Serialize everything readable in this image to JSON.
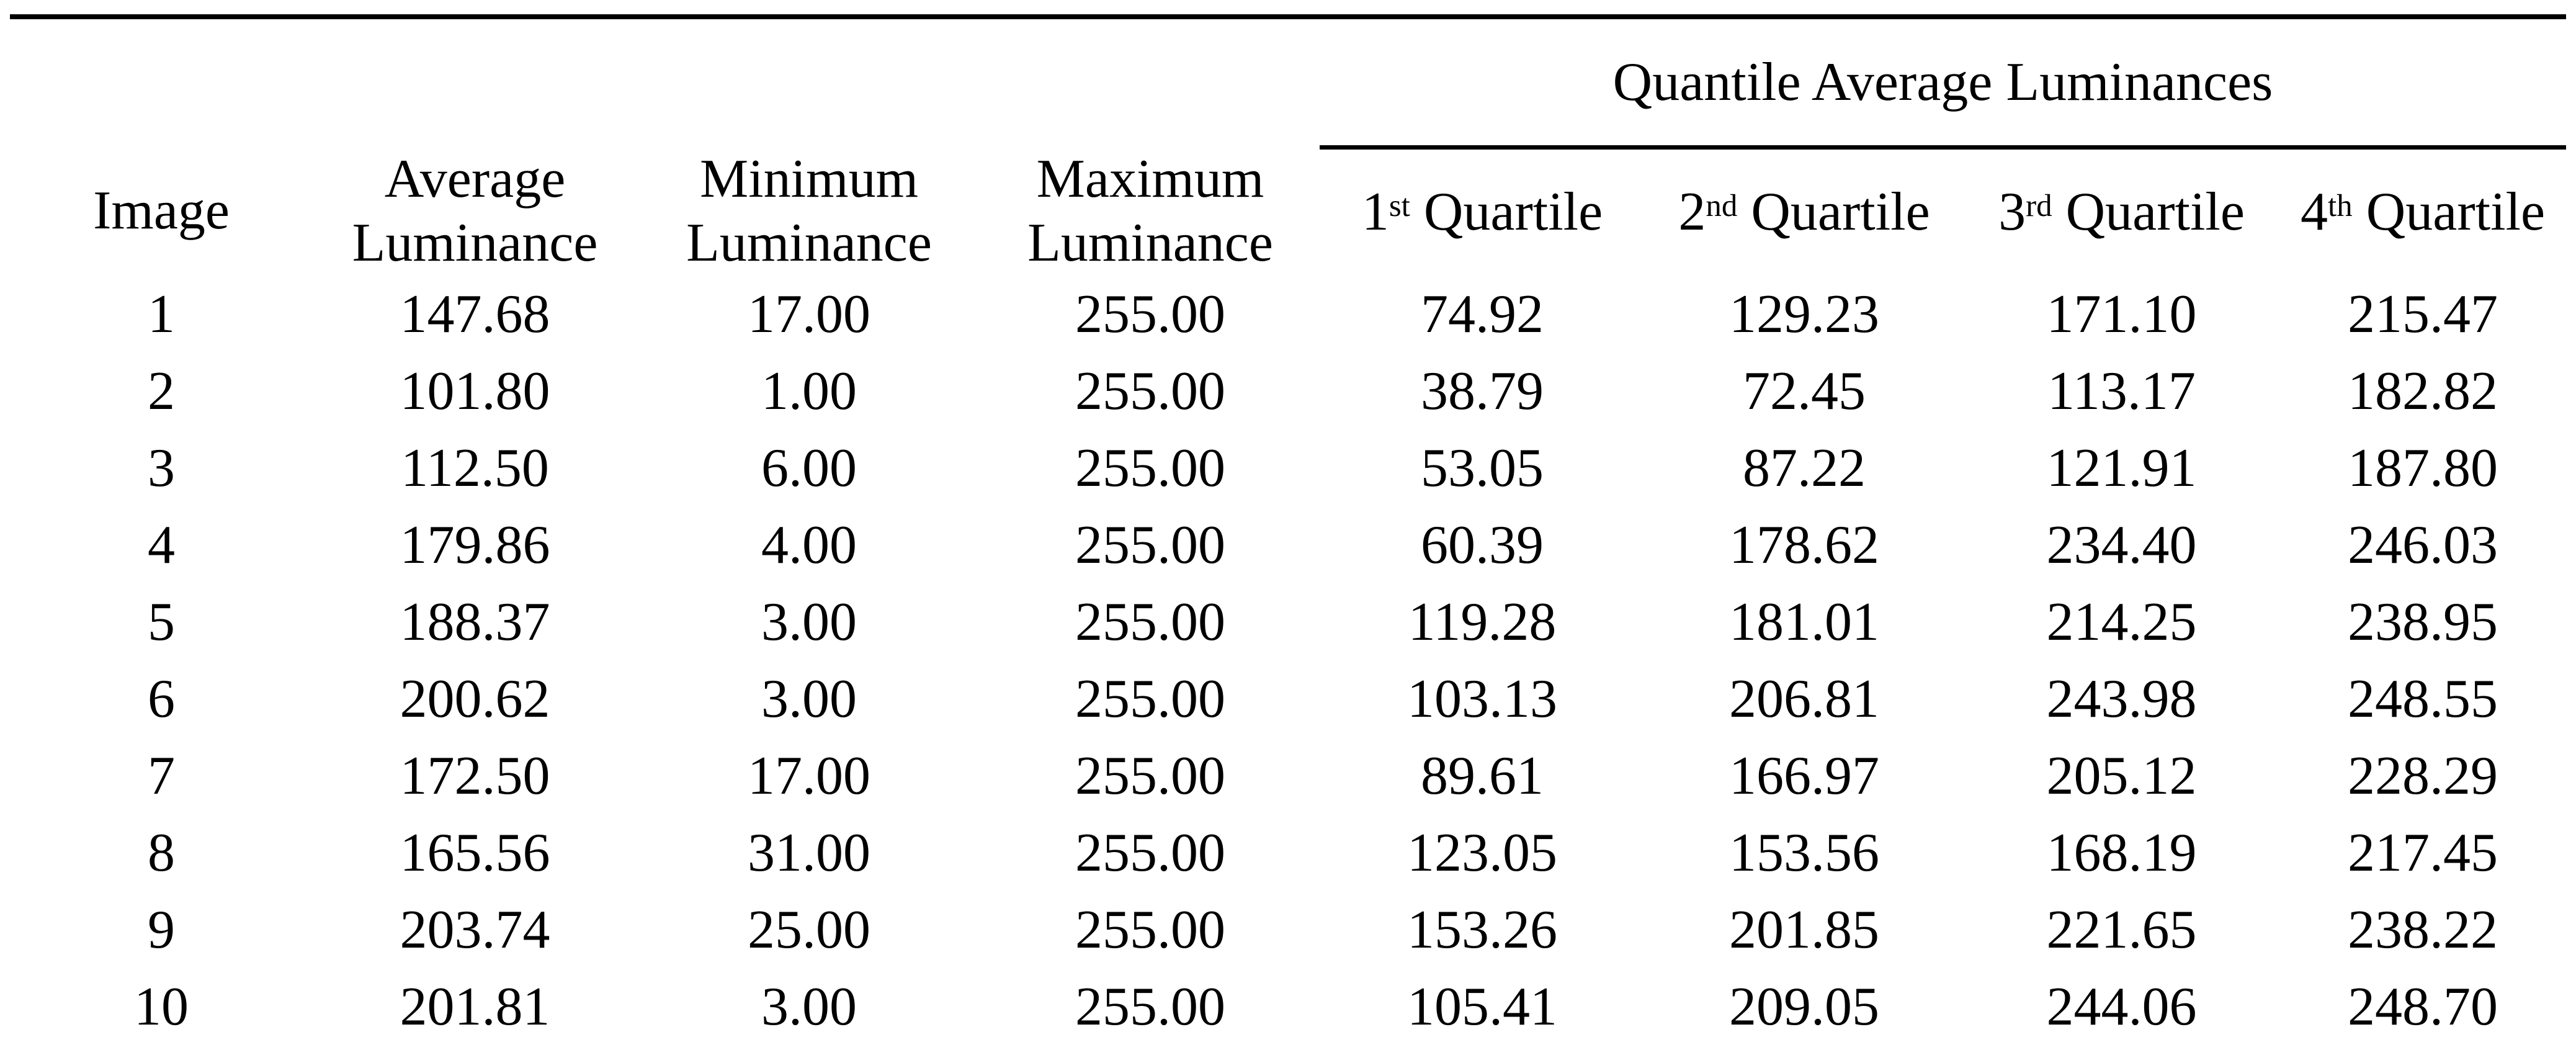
{
  "table": {
    "group_header_label": "Quantile Average Luminances",
    "columns": [
      "Image",
      "Average Luminance",
      "Minimum Luminance",
      "Maximum Luminance"
    ],
    "quartile_columns": [
      {
        "num": "1",
        "ord": "st",
        "word": "Quartile"
      },
      {
        "num": "2",
        "ord": "nd",
        "word": "Quartile"
      },
      {
        "num": "3",
        "ord": "rd",
        "word": "Quartile"
      },
      {
        "num": "4",
        "ord": "th",
        "word": "Quartile"
      }
    ],
    "rows": [
      [
        "1",
        "147.68",
        "17.00",
        "255.00",
        "74.92",
        "129.23",
        "171.10",
        "215.47"
      ],
      [
        "2",
        "101.80",
        "1.00",
        "255.00",
        "38.79",
        "72.45",
        "113.17",
        "182.82"
      ],
      [
        "3",
        "112.50",
        "6.00",
        "255.00",
        "53.05",
        "87.22",
        "121.91",
        "187.80"
      ],
      [
        "4",
        "179.86",
        "4.00",
        "255.00",
        "60.39",
        "178.62",
        "234.40",
        "246.03"
      ],
      [
        "5",
        "188.37",
        "3.00",
        "255.00",
        "119.28",
        "181.01",
        "214.25",
        "238.95"
      ],
      [
        "6",
        "200.62",
        "3.00",
        "255.00",
        "103.13",
        "206.81",
        "243.98",
        "248.55"
      ],
      [
        "7",
        "172.50",
        "17.00",
        "255.00",
        "89.61",
        "166.97",
        "205.12",
        "228.29"
      ],
      [
        "8",
        "165.56",
        "31.00",
        "255.00",
        "123.05",
        "153.56",
        "168.19",
        "217.45"
      ],
      [
        "9",
        "203.74",
        "25.00",
        "255.00",
        "153.26",
        "201.85",
        "221.65",
        "238.22"
      ],
      [
        "10",
        "201.81",
        "3.00",
        "255.00",
        "105.41",
        "209.05",
        "244.06",
        "248.70"
      ]
    ]
  },
  "colors": {
    "background": "#ffffff",
    "text": "#000000",
    "rule": "#000000"
  }
}
